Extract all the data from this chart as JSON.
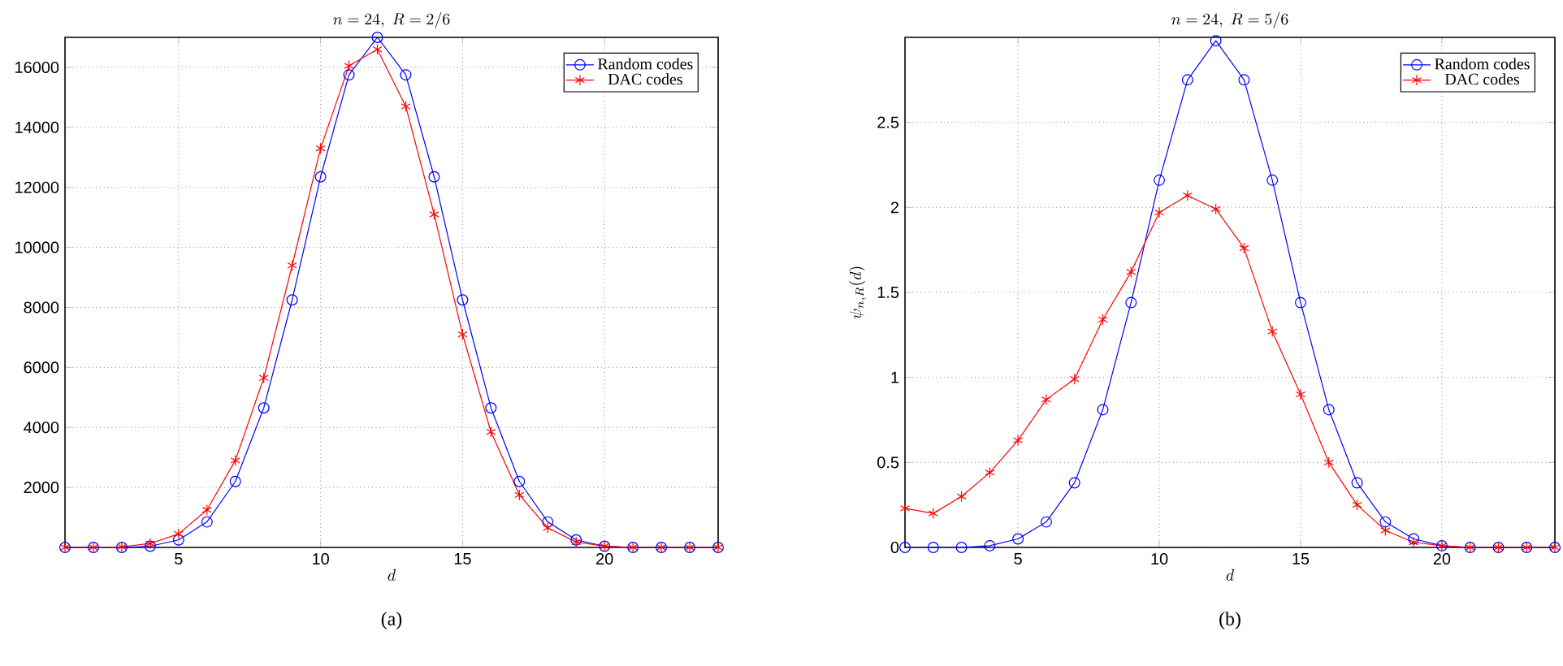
{
  "chart_data": [
    {
      "type": "line",
      "title": "n = 24,\\ R = 2/6",
      "xlabel": "d",
      "annotations": [
        "(a)"
      ],
      "x": [
        1,
        2,
        3,
        4,
        5,
        6,
        7,
        8,
        9,
        10,
        11,
        12,
        13,
        14,
        15,
        16,
        17,
        18,
        19,
        20,
        21,
        22,
        23,
        24
      ],
      "xlim": [
        1,
        24
      ],
      "ylim": [
        0,
        17000
      ],
      "xticks": [
        5,
        10,
        15,
        20
      ],
      "yticks": [
        2000,
        4000,
        6000,
        8000,
        10000,
        12000,
        14000,
        16000
      ],
      "grid": true,
      "legend": "top right",
      "line_style": "solid",
      "series": [
        {
          "name": "Random codes",
          "color": "#0000ff",
          "marker": "circle",
          "values": [
            0,
            0,
            0,
            40,
            250,
            850,
            2200,
            4650,
            8250,
            12350,
            15750,
            17000,
            15750,
            12350,
            8250,
            4650,
            2200,
            850,
            250,
            40,
            0,
            0,
            0,
            0
          ]
        },
        {
          "name": "DAC codes",
          "color": "#ff0000",
          "marker": "cross",
          "values": [
            0,
            0,
            20,
            130,
            450,
            1250,
            2900,
            5650,
            9400,
            13300,
            16050,
            16600,
            14700,
            11100,
            7100,
            3850,
            1750,
            650,
            180,
            40,
            0,
            0,
            0,
            0
          ]
        }
      ]
    },
    {
      "type": "line",
      "title": "n = 24,\\ R = 5/6",
      "xlabel": "d",
      "ylabel": "\\psi_{n,R}(d)",
      "annotations": [
        "(b)"
      ],
      "x": [
        1,
        2,
        3,
        4,
        5,
        6,
        7,
        8,
        9,
        10,
        11,
        12,
        13,
        14,
        15,
        16,
        17,
        18,
        19,
        20,
        21,
        22,
        23,
        24
      ],
      "xlim": [
        1,
        24
      ],
      "ylim": [
        0,
        3
      ],
      "xticks": [
        5,
        10,
        15,
        20
      ],
      "yticks": [
        0,
        0.5,
        1,
        1.5,
        2,
        2.5
      ],
      "grid": true,
      "legend": "top right",
      "line_style": "solid",
      "series": [
        {
          "name": "Random codes",
          "color": "#0000ff",
          "marker": "circle",
          "values": [
            0,
            0,
            0,
            0.01,
            0.05,
            0.15,
            0.38,
            0.81,
            1.44,
            2.16,
            2.75,
            2.98,
            2.75,
            2.16,
            1.44,
            0.81,
            0.38,
            0.15,
            0.05,
            0.01,
            0,
            0,
            0,
            0
          ]
        },
        {
          "name": "DAC codes",
          "color": "#ff0000",
          "marker": "cross",
          "values": [
            0.23,
            0.2,
            0.3,
            0.44,
            0.63,
            0.87,
            0.99,
            1.34,
            1.62,
            1.97,
            2.07,
            1.99,
            1.76,
            1.27,
            0.9,
            0.5,
            0.25,
            0.1,
            0.03,
            0.01,
            0,
            0,
            0,
            0
          ]
        }
      ]
    }
  ]
}
